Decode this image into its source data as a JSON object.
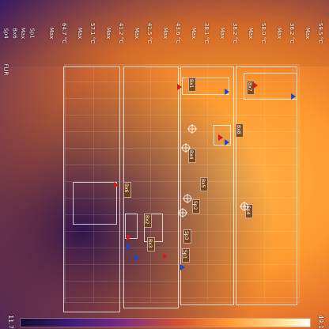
{
  "flir": {
    "lines": [
      "Sp4",
      "Bx6",
      "Max",
      "Sp1"
    ],
    "values": [
      "56.6 °C",
      "53.5 °C",
      "33.3 °C",
      "43.2 °C"
    ],
    "brand": "FLIR"
  },
  "header": {
    "columns": [
      {
        "id": "Bx2",
        "lines": [
          "Bx2",
          "Max",
          "Min",
          "Average",
          "Max",
          "Min"
        ],
        "values": [
          "",
          "64.7 °C",
          "38.6 °C",
          "46.0 °C",
          "47.5 °C",
          "49.1 °C"
        ]
      },
      {
        "id": "Bx3",
        "lines": [
          "Bx3",
          "Max",
          "Min",
          "Average",
          "Max",
          "Min"
        ],
        "values": [
          "",
          "57.1 °C",
          "32.5 °C",
          "41.5 °C",
          "39.1 °C",
          "38.1 °C"
        ]
      },
      {
        "id": "Bx4",
        "lines": [
          "Bx4",
          "Max",
          "Min",
          "Average",
          "Max",
          "Min"
        ],
        "values": [
          "",
          "41.2 °C",
          "36.4 °C",
          "37.9 °C",
          "39.1 °C",
          "38.4 °C"
        ]
      },
      {
        "id": "Bx5",
        "lines": [
          "Bx5",
          "Max",
          "Min",
          "Average",
          "Max",
          "Min"
        ],
        "values": [
          "",
          "41.5 °C",
          "38.5 °C",
          "39.9 °C",
          "40.3 °C",
          "39.8 °C"
        ]
      },
      {
        "id": "Bx1",
        "lines": [
          "Bx1",
          "Max",
          "Min",
          "Average",
          "Max",
          "Min"
        ],
        "values": [
          "",
          "43.6 °C",
          "33.1 °C",
          "41.1 °C",
          "40.1 °C",
          "39.8 °C"
        ]
      },
      {
        "id": "Bx7",
        "lines": [
          "Bx7",
          "Max",
          "Min",
          "Average",
          "Max",
          "Min"
        ],
        "values": [
          "",
          "38.1 °C",
          "35.2 °C",
          "36.9 °C",
          "38.5 °C",
          "37.2 °C"
        ]
      },
      {
        "id": "Bx8",
        "lines": [
          "Bx8",
          "Max",
          "Min",
          "Average",
          "Max",
          "Min"
        ],
        "values": [
          "",
          "38.2 °C",
          "30.1 °C",
          "34.4 °C",
          "40.1 °C",
          "38.6 °C"
        ]
      },
      {
        "id": "Sp2",
        "lines": [
          "Sp2",
          "Max",
          "Min",
          "Average",
          "Max",
          "Min"
        ],
        "values": [
          "",
          "58.0 °C",
          "57.7 °C",
          "39.0 °C",
          "36.5 °C",
          "35.5 °C"
        ]
      },
      {
        "id": "Sp3",
        "lines": [
          "Sp3",
          "Max",
          "Min",
          "Average",
          "Max",
          "Min"
        ],
        "values": [
          "",
          "36.2 °C",
          "38.0 °C",
          "38.0 °C",
          "38.1 °C",
          "31.1 °C"
        ]
      },
      {
        "id": "Bx8b",
        "lines": [
          "Bx8",
          "Max",
          "Min",
          "Average",
          "Max",
          "Min"
        ],
        "values": [
          "",
          "59.5 °C",
          "31.1 °C",
          "34.3 °C",
          "38.1 °C",
          "38.3 °C"
        ]
      }
    ]
  },
  "scale": {
    "min": "11.7",
    "max": "49.1"
  },
  "tags": [
    {
      "label": "Bx1"
    },
    {
      "label": "Bx2"
    },
    {
      "label": "Bx3"
    },
    {
      "label": "Bx4"
    },
    {
      "label": "Bx5"
    },
    {
      "label": "Bx6"
    },
    {
      "label": "Bx7"
    },
    {
      "label": "Bx8"
    },
    {
      "label": "Sp1"
    },
    {
      "label": "Sp2"
    },
    {
      "label": "Sp3"
    },
    {
      "label": "Sp4"
    }
  ]
}
